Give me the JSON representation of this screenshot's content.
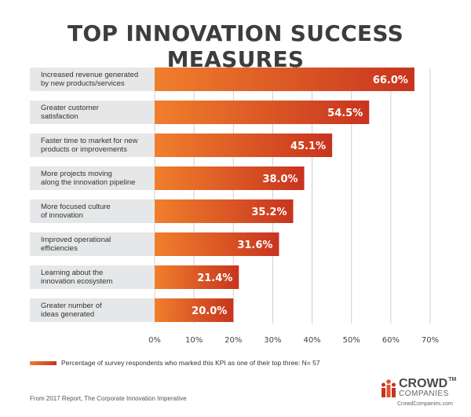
{
  "title": "TOP INNOVATION SUCCESS MEASURES",
  "chart_data": {
    "type": "bar",
    "orientation": "horizontal",
    "categories": [
      [
        "Increased revenue generated",
        "by new products/services"
      ],
      [
        "Greater customer",
        "satisfaction"
      ],
      [
        "Faster time to market for new",
        "products or improvements"
      ],
      [
        "More projects moving",
        "along the innovation pipeline"
      ],
      [
        "More focused culture",
        "of innovation"
      ],
      [
        "Improved operational",
        "efficiencies"
      ],
      [
        "Learning about the",
        "innovation ecosystem"
      ],
      [
        "Greater number of",
        "ideas generated"
      ]
    ],
    "values": [
      66.0,
      54.5,
      45.1,
      38.0,
      35.2,
      31.6,
      21.4,
      20.0
    ],
    "value_labels": [
      "66.0%",
      "54.5%",
      "45.1%",
      "38.0%",
      "35.2%",
      "31.6%",
      "21.4%",
      "20.0%"
    ],
    "xlim": [
      0,
      70
    ],
    "xticks": [
      "0%",
      "10%",
      "20%",
      "30%",
      "40%",
      "50%",
      "60%",
      "70%"
    ],
    "grid": true,
    "legend": "Percentage of survey respondents who marked this KPI as one of their top three: N= 57",
    "legend_position": "bottom",
    "colors": {
      "bar_start": "#f07f2c",
      "bar_end": "#c8341f",
      "label_bg": "#e6e7e8",
      "grid": "#d0d0d0"
    }
  },
  "footnote": "From 2017 Report, The Corporate Innovation Imperative",
  "logo": {
    "word": "CROWD",
    "tm": "TM",
    "sub": "COMPANIES",
    "url": "CrowdCompanies.com"
  }
}
